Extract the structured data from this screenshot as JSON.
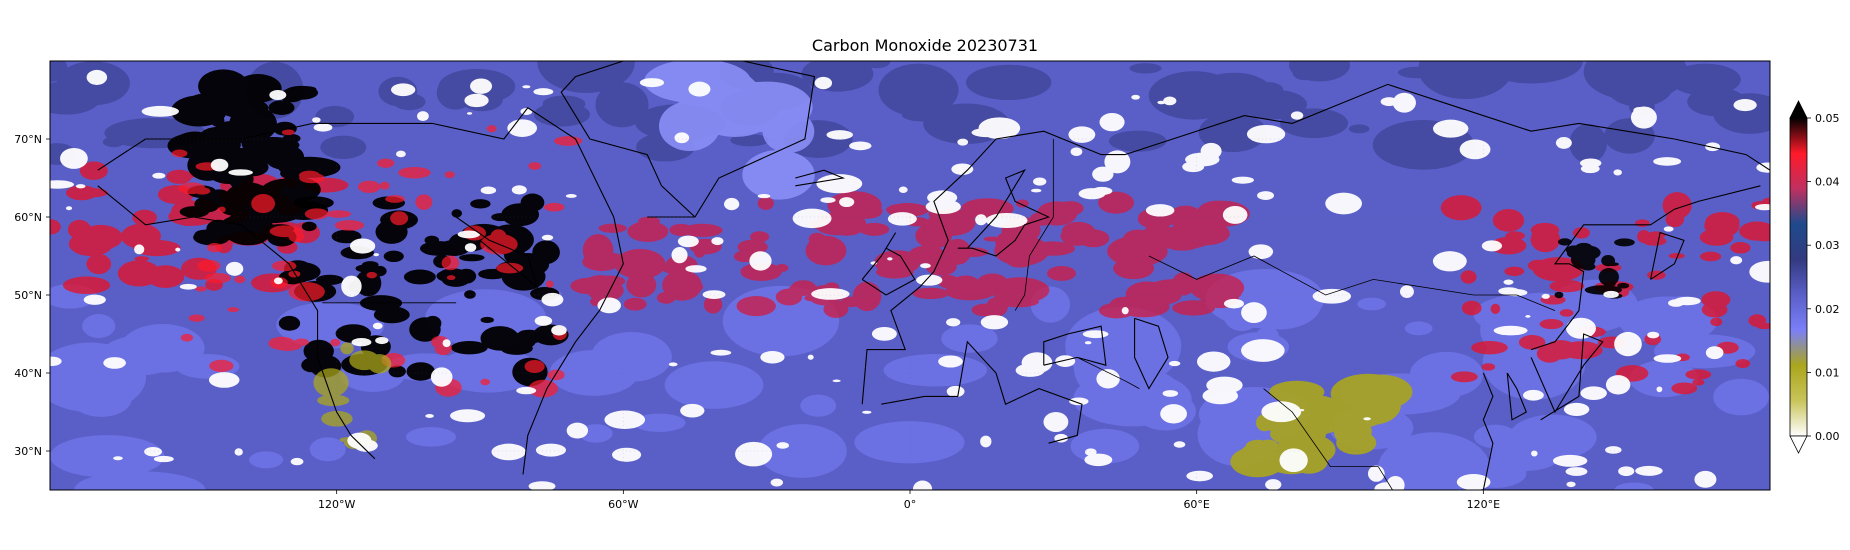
{
  "title": "Carbon Monoxide 20230731",
  "map": {
    "projection": "PlateCarree",
    "lon_range": [
      -180,
      180
    ],
    "lat_range": [
      25,
      80
    ],
    "lon_ticks": [
      {
        "value": -120,
        "label": "120°W"
      },
      {
        "value": -60,
        "label": "60°W"
      },
      {
        "value": 0,
        "label": "0°"
      },
      {
        "value": 60,
        "label": "60°E"
      },
      {
        "value": 120,
        "label": "120°E"
      }
    ],
    "lat_ticks": [
      {
        "value": 70,
        "label": "70°N"
      },
      {
        "value": 60,
        "label": "60°N"
      },
      {
        "value": 50,
        "label": "50°N"
      },
      {
        "value": 40,
        "label": "40°N"
      },
      {
        "value": 30,
        "label": "30°N"
      }
    ],
    "background_color": "#5a5fc8",
    "missing_color": "#ffffff",
    "coastline_color": "#000000"
  },
  "colorbar": {
    "min": 0.0,
    "max": 0.05,
    "extend": "both",
    "ticks": [
      {
        "value": 0.0,
        "label": "0.00"
      },
      {
        "value": 0.01,
        "label": "0.01"
      },
      {
        "value": 0.02,
        "label": "0.02"
      },
      {
        "value": 0.03,
        "label": "0.03"
      },
      {
        "value": 0.04,
        "label": "0.04"
      },
      {
        "value": 0.05,
        "label": "0.05"
      }
    ],
    "colors": [
      "#ffffff",
      "#c8c45a",
      "#aaa61c",
      "#7a7ff8",
      "#5a5fc8",
      "#333a80",
      "#1e4a8c",
      "#c03060",
      "#ff1a2a",
      "#000000"
    ],
    "under_color": "#ffffff",
    "over_color": "#000000"
  }
}
